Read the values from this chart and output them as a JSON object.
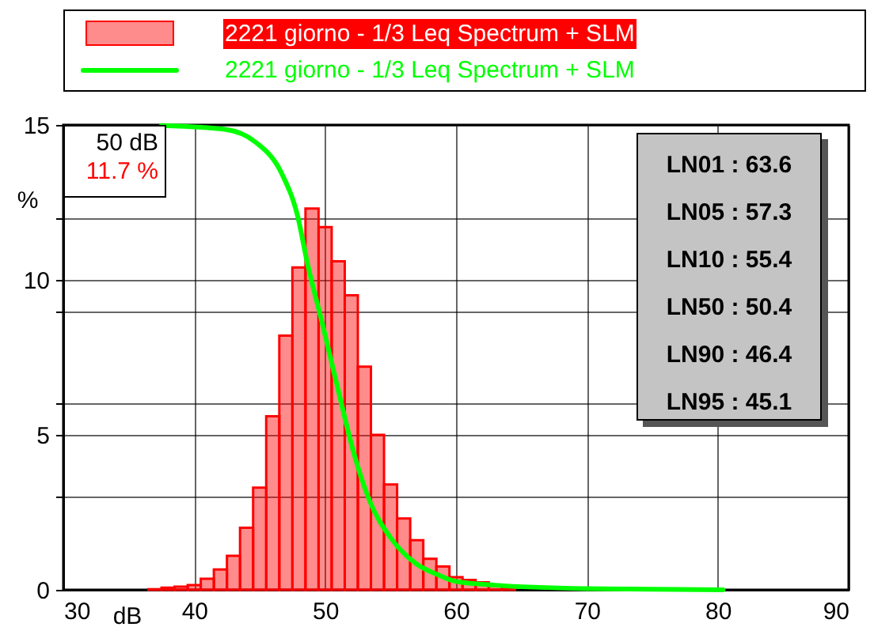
{
  "chart_data": {
    "type": "histogram",
    "xlabel": "dB",
    "ylabel": "%",
    "bins": [
      36.5,
      37.5,
      38.5,
      39.5,
      40.5,
      41.5,
      42.5,
      43.5,
      44.5,
      45.5,
      46.5,
      47.5,
      48.5,
      49.5,
      50.5,
      51.5,
      52.5,
      53.5,
      54.5,
      55.5,
      56.5,
      57.5,
      58.5,
      59.5,
      60.5,
      61.5,
      62.5,
      63.5,
      64.5,
      65.5,
      66.5,
      67.5,
      68.5,
      69.5
    ],
    "series": [
      {
        "name": "2221 giorno - 1/3 Leq Spectrum + SLM",
        "color": "#ff0000",
        "values": [
          0.02,
          0.07,
          0.1,
          0.15,
          0.36,
          0.66,
          1.1,
          2.0,
          3.3,
          5.6,
          8.2,
          10.4,
          12.3,
          11.7,
          10.6,
          9.5,
          7.2,
          5.0,
          3.4,
          2.3,
          1.6,
          1.0,
          0.75,
          0.41,
          0.32,
          0.24,
          0.12,
          0.08,
          null,
          null,
          null,
          null,
          null
        ]
      },
      {
        "name": "2221 giorno - 1/3 Leq Spectrum + SLM",
        "type": "line",
        "color": "#00ff00",
        "x": [
          37.5,
          42.3,
          44.7,
          46.7,
          47.9,
          48.65,
          49.85,
          51.0,
          52.2,
          53.4,
          55.0,
          57.0,
          58.6,
          60.0,
          63.0,
          69.9,
          80.4
        ],
        "values": [
          14.98,
          14.86,
          14.44,
          13.42,
          12.06,
          10.53,
          8.48,
          6.44,
          4.4,
          2.87,
          1.68,
          0.83,
          0.49,
          0.27,
          0.15,
          0.04,
          0
        ]
      }
    ],
    "xlim": [
      30,
      90
    ],
    "xticks": [
      30,
      40,
      50,
      60,
      70,
      80,
      90
    ],
    "ylim": [
      0,
      15
    ],
    "yticks": [
      0,
      {
        "value": 3,
        "label": null
      },
      5,
      {
        "value": 6,
        "label": null
      },
      {
        "value": 9,
        "label": null
      },
      10,
      {
        "value": 12,
        "label": null
      },
      15
    ],
    "grid": true,
    "legend": "top",
    "line_style": "solid",
    "annotations": [
      "50 dB",
      "11.7 %",
      "LN01 : 63.6",
      "LN05 : 57.3",
      "LN10 : 55.4",
      "LN50 : 50.4",
      "LN90 : 46.4",
      "LN95 : 45.1"
    ]
  }
}
